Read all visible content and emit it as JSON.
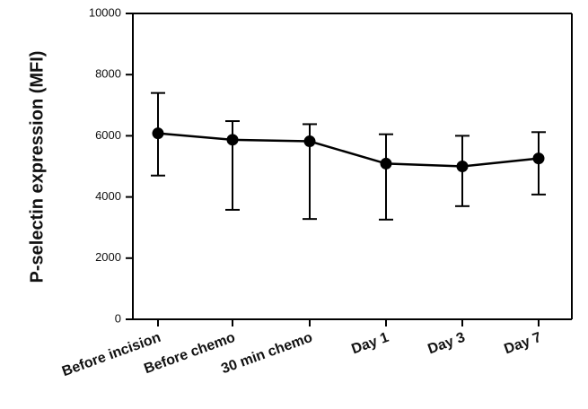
{
  "chart_data": {
    "type": "line",
    "title": "",
    "xlabel": "",
    "ylabel": "P-selectin expression (MFI)",
    "ylim": [
      0,
      10000
    ],
    "yticks": [
      0,
      2000,
      4000,
      6000,
      8000,
      10000
    ],
    "categories": [
      "Before incision",
      "Before chemo",
      "30 min chemo",
      "Day 1",
      "Day 3",
      "Day 7"
    ],
    "series": [
      {
        "values": [
          6080,
          5870,
          5820,
          5090,
          5000,
          5260
        ],
        "error_upper": [
          7400,
          6480,
          6380,
          6050,
          6000,
          6120
        ],
        "error_lower": [
          4700,
          3580,
          3280,
          3260,
          3700,
          4080
        ]
      }
    ],
    "grid": false,
    "legend": "none"
  }
}
